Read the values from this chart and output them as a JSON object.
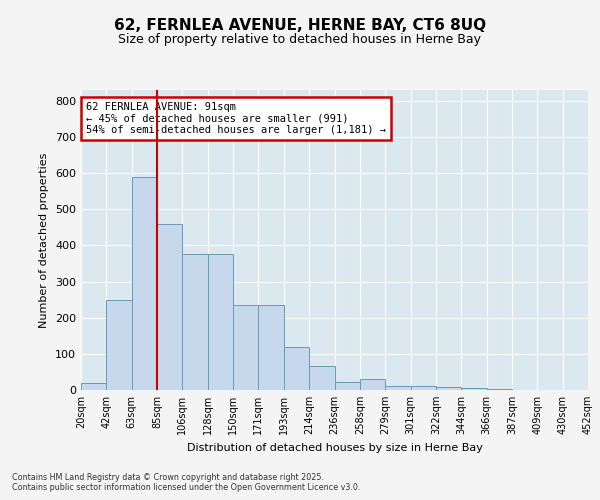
{
  "title_line1": "62, FERNLEA AVENUE, HERNE BAY, CT6 8UQ",
  "title_line2": "Size of property relative to detached houses in Herne Bay",
  "xlabel": "Distribution of detached houses by size in Herne Bay",
  "ylabel": "Number of detached properties",
  "bar_values": [
    18,
    250,
    590,
    460,
    375,
    375,
    235,
    235,
    120,
    67,
    22,
    30,
    12,
    10,
    8,
    5,
    2,
    1,
    1,
    1
  ],
  "categories": [
    "20sqm",
    "42sqm",
    "63sqm",
    "85sqm",
    "106sqm",
    "128sqm",
    "150sqm",
    "171sqm",
    "193sqm",
    "214sqm",
    "236sqm",
    "258sqm",
    "279sqm",
    "301sqm",
    "322sqm",
    "344sqm",
    "366sqm",
    "387sqm",
    "409sqm",
    "430sqm",
    "452sqm"
  ],
  "bar_color_fill": "#c8d8ec",
  "bar_color_edge": "#6699bb",
  "vline_x": 3,
  "vline_color": "#cc0000",
  "annotation_title": "62 FERNLEA AVENUE: 91sqm",
  "annotation_line1": "← 45% of detached houses are smaller (991)",
  "annotation_line2": "54% of semi-detached houses are larger (1,181) →",
  "annotation_box_color": "#cc0000",
  "ylim": [
    0,
    830
  ],
  "yticks": [
    0,
    100,
    200,
    300,
    400,
    500,
    600,
    700,
    800
  ],
  "background_color": "#dce8f0",
  "grid_color": "#ffffff",
  "fig_bg_color": "#f4f4f4",
  "footnote_line1": "Contains HM Land Registry data © Crown copyright and database right 2025.",
  "footnote_line2": "Contains public sector information licensed under the Open Government Licence v3.0."
}
